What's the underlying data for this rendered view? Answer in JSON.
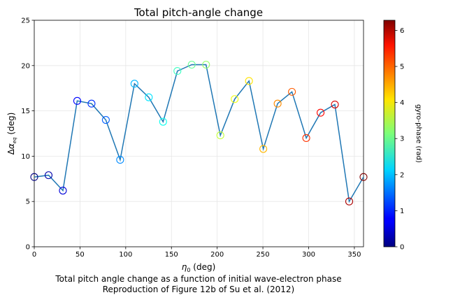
{
  "chart_data": {
    "type": "scatter",
    "title": "Total pitch-angle change",
    "xlabel": "η0 (deg)",
    "ylabel": "Δαeq (deg)",
    "xlim": [
      0,
      360
    ],
    "ylim": [
      0,
      25
    ],
    "xticks": [
      0,
      50,
      100,
      150,
      200,
      250,
      300,
      350
    ],
    "yticks": [
      0,
      5,
      10,
      15,
      20,
      25
    ],
    "grid": true,
    "line_color": "#1f77b4",
    "x": [
      0,
      15.65,
      31.3,
      46.96,
      62.61,
      78.26,
      93.91,
      109.57,
      125.22,
      140.87,
      156.52,
      172.17,
      187.83,
      203.48,
      219.13,
      234.78,
      250.43,
      266.09,
      281.74,
      297.39,
      313.04,
      328.7,
      344.35,
      360
    ],
    "y": [
      7.7,
      7.9,
      6.2,
      16.1,
      15.8,
      14.0,
      9.6,
      18.0,
      16.5,
      13.8,
      19.4,
      20.1,
      20.1,
      12.3,
      16.3,
      18.3,
      10.8,
      15.8,
      17.1,
      12.0,
      14.8,
      15.7,
      5.0,
      7.7
    ],
    "color_values": [
      0.0,
      0.27,
      0.55,
      0.82,
      1.09,
      1.37,
      1.64,
      1.91,
      2.19,
      2.46,
      2.73,
      3.01,
      3.28,
      3.55,
      3.83,
      4.1,
      4.37,
      4.64,
      4.92,
      5.19,
      5.46,
      5.74,
      6.01,
      6.28
    ],
    "colorbar": {
      "label": "gyro-phase (rad)",
      "range": [
        0,
        6.28
      ],
      "ticks": [
        0,
        1,
        2,
        3,
        4,
        5,
        6
      ],
      "colormap": "jet"
    },
    "caption_lines": [
      "Total pitch angle change as a function of initial wave-electron phase",
      "Reproduction of Figure 12b of Su et al. (2012)"
    ]
  }
}
